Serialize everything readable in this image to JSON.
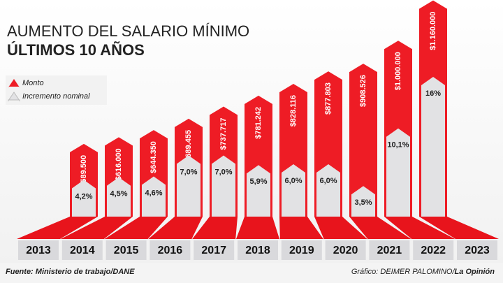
{
  "chart_data": {
    "type": "bar",
    "title": "AUMENTO DEL SALARIO MÍNIMO",
    "subtitle": "ÚLTIMOS 10 AÑOS",
    "categories": [
      "2013",
      "2014",
      "2015",
      "2016",
      "2017",
      "2018",
      "2019",
      "2020",
      "2021",
      "2022",
      "2023"
    ],
    "series": [
      {
        "name": "Monto",
        "color": "#ee1c25",
        "values": [
          589500,
          616000,
          644350,
          689455,
          737717,
          781242,
          828116,
          877803,
          908526,
          1000000,
          1160000
        ],
        "value_labels": [
          "$589.500",
          "$616.000",
          "$644.350",
          "$689.455",
          "$737.717",
          "$781.242",
          "$828.116",
          "$877.803",
          "$908.526",
          "$1.000.000",
          "$1.160.000"
        ]
      },
      {
        "name": "Incremento nominal",
        "color": "#e2e2e4",
        "values": [
          4.2,
          4.5,
          4.6,
          7.0,
          7.0,
          5.9,
          6.0,
          6.0,
          3.5,
          10.1,
          16
        ],
        "value_labels": [
          "4,2%",
          "4,5%",
          "4,6%",
          "7,0%",
          "7,0%",
          "5,9%",
          "6,0%",
          "6,0%",
          "3,5%",
          "10,1%",
          "16%"
        ]
      }
    ],
    "source": "Fuente: Ministerio de trabajo/DANE",
    "credit": "Gráfico: DEIMER PALOMINO/",
    "credit_outlet": "La Opinión"
  }
}
